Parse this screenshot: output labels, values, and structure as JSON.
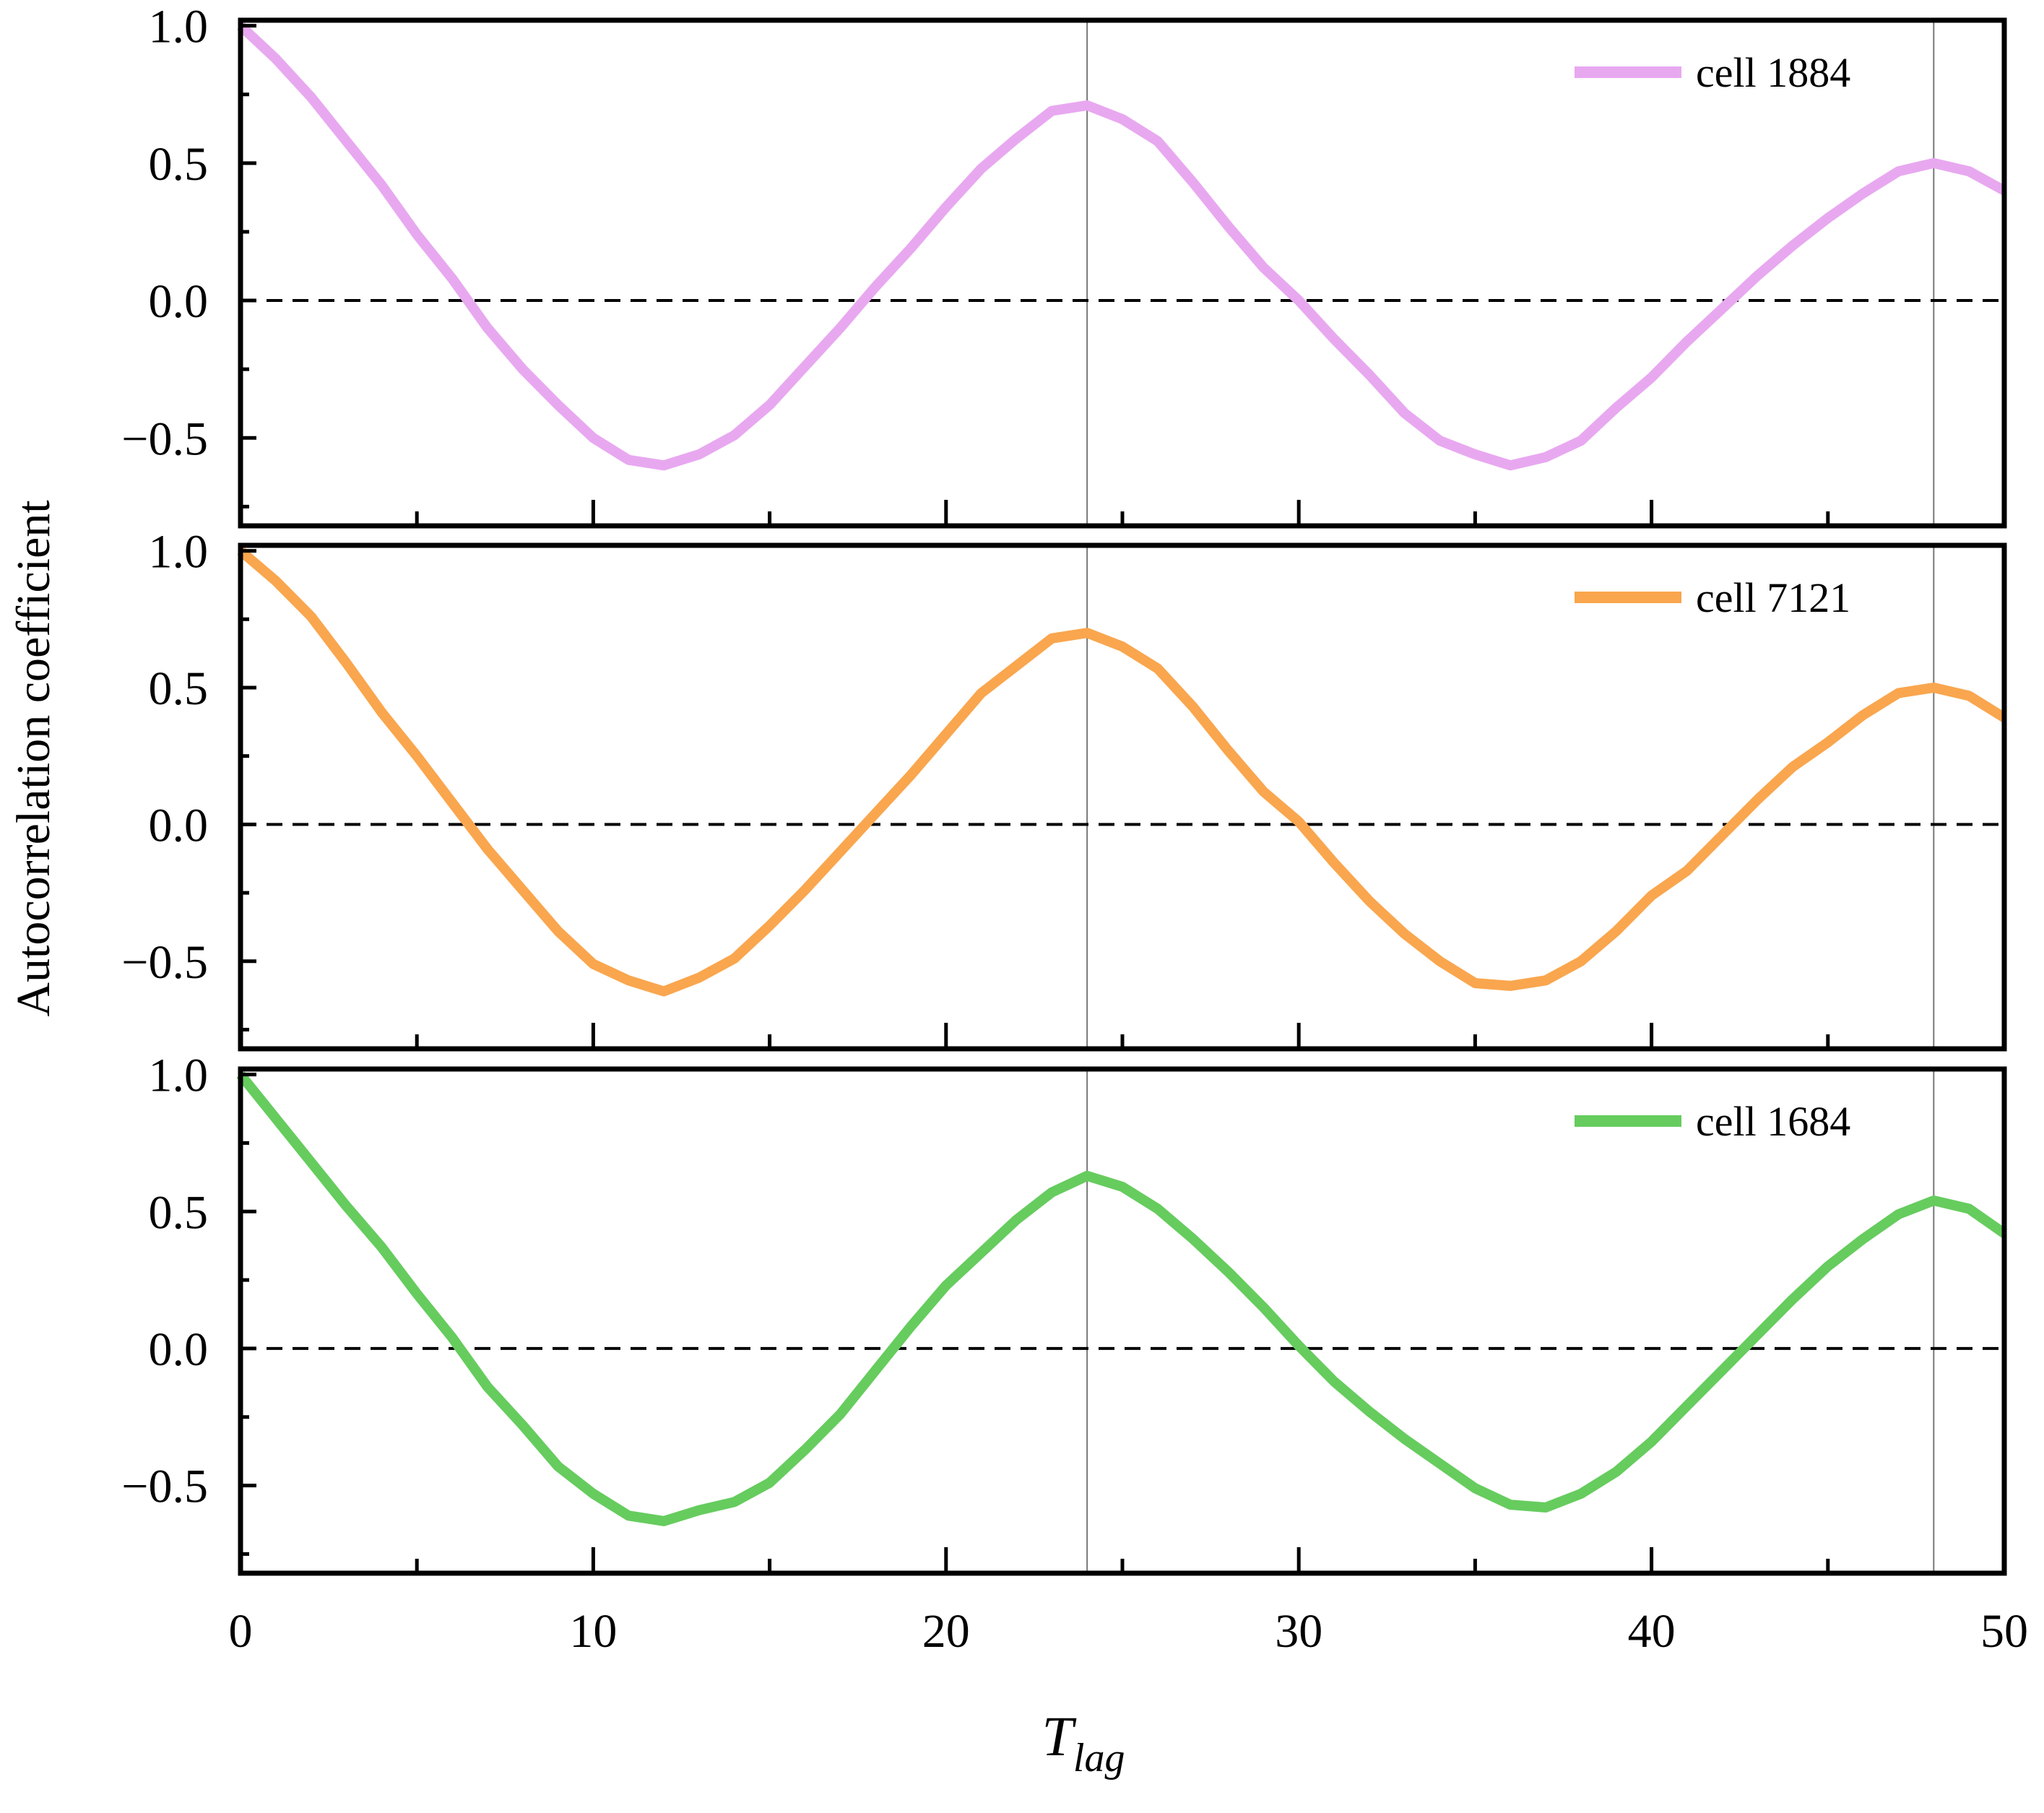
{
  "chart_data": {
    "type": "line",
    "layout": "three vertically stacked panels sharing the x axis",
    "xlabel": "T",
    "xlabel_subscript": "lag",
    "ylabel": "Autocorrelation coefficient",
    "xlim": [
      0,
      50
    ],
    "ylim": [
      -0.82,
      1.02
    ],
    "x_ticks": [
      0,
      10,
      20,
      30,
      40,
      50
    ],
    "y_ticks": [
      1.0,
      0.5,
      0.0,
      -0.5
    ],
    "y_tick_labels": [
      "1.0",
      "0.5",
      "0.0",
      "−0.5"
    ],
    "reference_lines": {
      "horizontal_dashed_at": 0.0,
      "vertical_lines_at": [
        24,
        48
      ]
    },
    "x": [
      0,
      1,
      2,
      3,
      4,
      5,
      6,
      7,
      8,
      9,
      10,
      11,
      12,
      13,
      14,
      15,
      16,
      17,
      18,
      19,
      20,
      21,
      22,
      23,
      24,
      25,
      26,
      27,
      28,
      29,
      30,
      31,
      32,
      33,
      34,
      35,
      36,
      37,
      38,
      39,
      40,
      41,
      42,
      43,
      44,
      45,
      46,
      47,
      48,
      49,
      50
    ],
    "series": [
      {
        "name": "cell 1884",
        "color": "#E8A8F0",
        "legend_position": "top-right",
        "values": [
          1.0,
          0.88,
          0.74,
          0.58,
          0.42,
          0.24,
          0.08,
          -0.1,
          -0.25,
          -0.38,
          -0.5,
          -0.58,
          -0.6,
          -0.56,
          -0.49,
          -0.38,
          -0.24,
          -0.1,
          0.05,
          0.19,
          0.34,
          0.48,
          0.59,
          0.69,
          0.71,
          0.66,
          0.58,
          0.43,
          0.27,
          0.12,
          0.0,
          -0.14,
          -0.27,
          -0.41,
          -0.51,
          -0.56,
          -0.6,
          -0.57,
          -0.51,
          -0.39,
          -0.28,
          -0.15,
          -0.03,
          0.09,
          0.2,
          0.3,
          0.39,
          0.47,
          0.5,
          0.47,
          0.4
        ]
      },
      {
        "name": "cell 7121",
        "color": "#F9A64E",
        "legend_position": "top-right",
        "values": [
          1.0,
          0.89,
          0.76,
          0.59,
          0.41,
          0.25,
          0.08,
          -0.09,
          -0.24,
          -0.39,
          -0.51,
          -0.57,
          -0.61,
          -0.56,
          -0.49,
          -0.37,
          -0.24,
          -0.1,
          0.04,
          0.18,
          0.33,
          0.48,
          0.58,
          0.68,
          0.7,
          0.65,
          0.57,
          0.43,
          0.27,
          0.12,
          0.01,
          -0.14,
          -0.28,
          -0.4,
          -0.5,
          -0.58,
          -0.59,
          -0.57,
          -0.5,
          -0.39,
          -0.26,
          -0.17,
          -0.04,
          0.09,
          0.21,
          0.3,
          0.4,
          0.48,
          0.5,
          0.47,
          0.39
        ]
      },
      {
        "name": "cell 1684",
        "color": "#66CC5E",
        "legend_position": "top-right",
        "values": [
          1.0,
          0.84,
          0.68,
          0.52,
          0.37,
          0.2,
          0.04,
          -0.14,
          -0.28,
          -0.43,
          -0.53,
          -0.61,
          -0.63,
          -0.59,
          -0.56,
          -0.49,
          -0.37,
          -0.24,
          -0.08,
          0.08,
          0.23,
          0.35,
          0.47,
          0.57,
          0.63,
          0.59,
          0.51,
          0.4,
          0.28,
          0.15,
          0.01,
          -0.12,
          -0.23,
          -0.33,
          -0.42,
          -0.51,
          -0.57,
          -0.58,
          -0.53,
          -0.45,
          -0.34,
          -0.21,
          -0.08,
          0.05,
          0.18,
          0.3,
          0.4,
          0.49,
          0.54,
          0.51,
          0.42
        ]
      }
    ]
  }
}
